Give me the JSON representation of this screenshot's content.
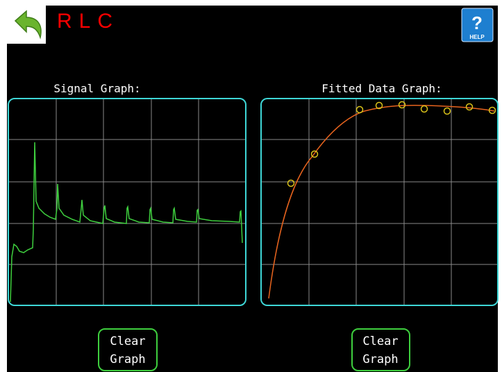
{
  "header": {
    "title": "RLC",
    "help_icon": "?",
    "help_label": "HELP"
  },
  "panels": [
    {
      "label": "Signal Graph:"
    },
    {
      "label": "Fitted Data Graph:"
    }
  ],
  "buttons": [
    {
      "lines": [
        "Clear",
        "Graph"
      ]
    },
    {
      "lines": [
        "Clear",
        "Graph"
      ]
    }
  ]
}
